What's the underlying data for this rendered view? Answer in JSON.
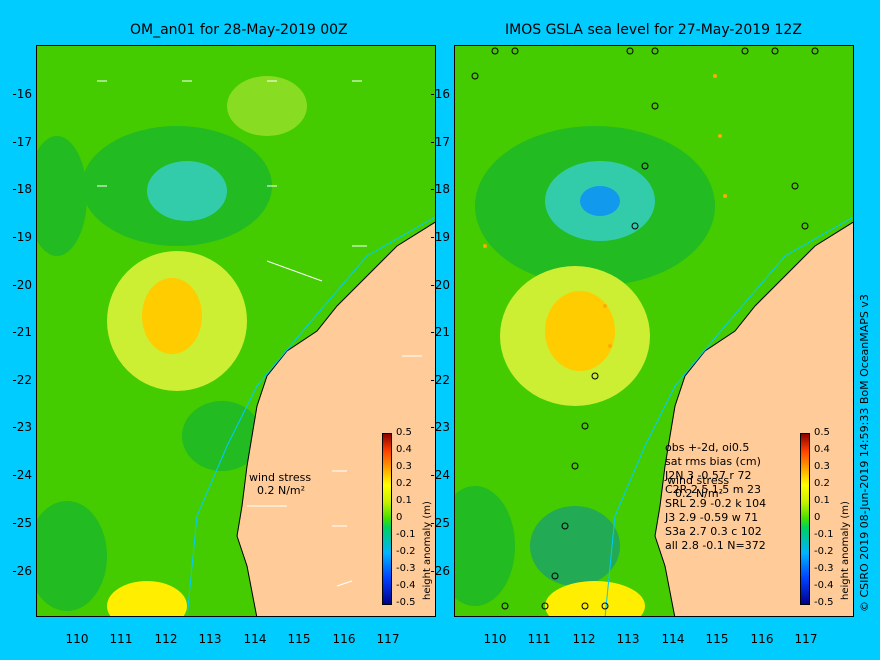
{
  "left_panel": {
    "title": "OM_an01 for 28-May-2019 00Z",
    "wind_label": "wind stress",
    "wind_scale": "0.2 N/m²",
    "colorbar_label": "height anomaly (m)"
  },
  "right_panel": {
    "title": "IMOS GSLA sea level  for 27-May-2019 12Z",
    "colorbar_label": "height anomaly (m)",
    "legend_lines": [
      "obs +-2d, oi0.5",
      "sat rms bias (cm)",
      "J2N    3  -0.57 r 72",
      "C2R    2.5  1.5 m 23",
      "SRL    2.9  -0.2 k 104",
      "J3     2.9  -0.59 w 71",
      "S3a    2.7  0.3  c 102",
      "all    2.8  -0.1  N=372"
    ],
    "wind_label": "wind stress",
    "wind_scale": "0.2 N/m²"
  },
  "axes": {
    "lat_ticks": [
      "-16",
      "-17",
      "-18",
      "-19",
      "-20",
      "-21",
      "-22",
      "-23",
      "-24",
      "-25",
      "-26"
    ],
    "lon_ticks": [
      "110",
      "111",
      "112",
      "113",
      "114",
      "115",
      "116",
      "117"
    ],
    "colorbar_ticks": [
      "0.5",
      "0.4",
      "0.3",
      "0.2",
      "0.1",
      "0",
      "-0.1",
      "-0.2",
      "-0.3",
      "-0.4",
      "-0.5"
    ]
  },
  "credit": "© CSIRO 2019  08-Jun-2019 14:59:33 BoM OceanMAPS v3",
  "colors": {
    "background": "#00ccff",
    "land": "#ffcc99",
    "sea_base": "#44cc00"
  }
}
